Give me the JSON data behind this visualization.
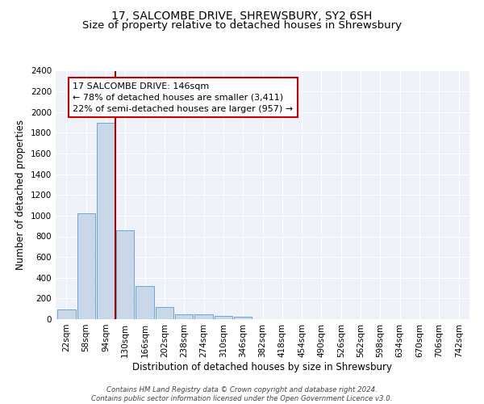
{
  "title_line1": "17, SALCOMBE DRIVE, SHREWSBURY, SY2 6SH",
  "title_line2": "Size of property relative to detached houses in Shrewsbury",
  "xlabel": "Distribution of detached houses by size in Shrewsbury",
  "ylabel": "Number of detached properties",
  "bin_labels": [
    "22sqm",
    "58sqm",
    "94sqm",
    "130sqm",
    "166sqm",
    "202sqm",
    "238sqm",
    "274sqm",
    "310sqm",
    "346sqm",
    "382sqm",
    "418sqm",
    "454sqm",
    "490sqm",
    "526sqm",
    "562sqm",
    "598sqm",
    "634sqm",
    "670sqm",
    "706sqm",
    "742sqm"
  ],
  "bar_heights": [
    90,
    1020,
    1900,
    860,
    320,
    115,
    50,
    45,
    35,
    20,
    0,
    0,
    0,
    0,
    0,
    0,
    0,
    0,
    0,
    0,
    0
  ],
  "bar_color": "#c8d8e8",
  "bar_edge_color": "#5b9bd5",
  "vline_color": "#aa0000",
  "annotation_text": "17 SALCOMBE DRIVE: 146sqm\n← 78% of detached houses are smaller (3,411)\n22% of semi-detached houses are larger (957) →",
  "annotation_box_color": "white",
  "annotation_box_edge_color": "#cc0000",
  "ylim": [
    0,
    2400
  ],
  "yticks": [
    0,
    200,
    400,
    600,
    800,
    1000,
    1200,
    1400,
    1600,
    1800,
    2000,
    2200,
    2400
  ],
  "background_color": "#eef2f8",
  "footer_text": "Contains HM Land Registry data © Crown copyright and database right 2024.\nContains public sector information licensed under the Open Government Licence v3.0.",
  "title_fontsize": 10,
  "subtitle_fontsize": 9.5,
  "axis_label_fontsize": 8.5,
  "tick_fontsize": 7.5,
  "annotation_fontsize": 8
}
